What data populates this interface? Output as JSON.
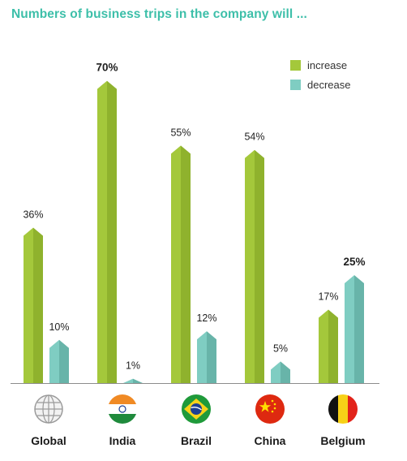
{
  "chart_data": {
    "type": "bar",
    "title": "Numbers of business trips in the company will ...",
    "categories": [
      "Global",
      "India",
      "Brazil",
      "China",
      "Belgium"
    ],
    "series": [
      {
        "name": "increase",
        "values": [
          36,
          70,
          55,
          54,
          17
        ],
        "labels": [
          "36%",
          "70%",
          "55%",
          "54%",
          "17%"
        ],
        "color_front": "#a4c83b",
        "color_side": "#8fb22d"
      },
      {
        "name": "decrease",
        "values": [
          10,
          1,
          12,
          5,
          25
        ],
        "labels": [
          "10%",
          "1%",
          "12%",
          "5%",
          "25%"
        ],
        "color_front": "#7fcdc2",
        "color_side": "#68b4a9"
      }
    ],
    "bold_labels": [
      [
        1,
        0
      ],
      [
        4,
        1
      ]
    ],
    "ylim": [
      0,
      70
    ],
    "legend": "top-right",
    "grid": false,
    "xlabel": "",
    "ylabel": ""
  },
  "icons": [
    "globe-icon",
    "india-flag-icon",
    "brazil-flag-icon",
    "china-flag-icon",
    "belgium-flag-icon"
  ]
}
